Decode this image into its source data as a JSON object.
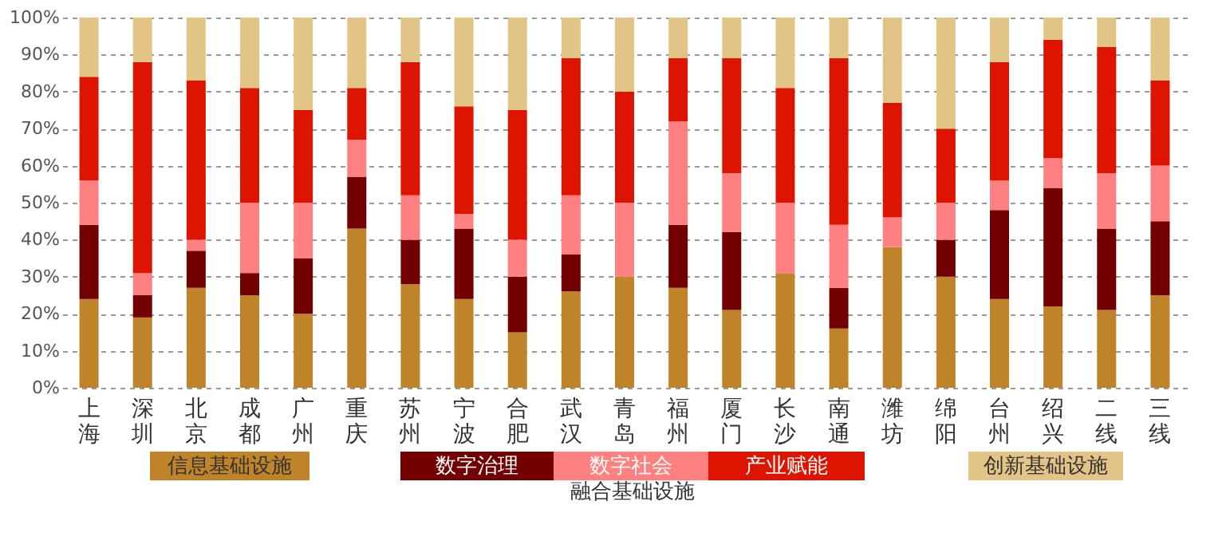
{
  "chart_data": {
    "type": "bar",
    "stacked": true,
    "categories": [
      "上海",
      "深圳",
      "北京",
      "成都",
      "广州",
      "重庆",
      "苏州",
      "宁波",
      "合肥",
      "武汉",
      "青岛",
      "福州",
      "厦门",
      "长沙",
      "南通",
      "潍坊",
      "绵阳",
      "台州",
      "绍兴",
      "二线",
      "三线"
    ],
    "series": [
      {
        "name": "信息基础设施",
        "color": "#bf842a",
        "values": [
          24,
          19,
          27,
          25,
          20,
          43,
          28,
          24,
          15,
          26,
          30,
          27,
          21,
          31,
          16,
          38,
          30,
          24,
          22,
          21,
          25
        ]
      },
      {
        "name": "数字治理",
        "color": "#730000",
        "values": [
          20,
          6,
          10,
          6,
          15,
          14,
          12,
          19,
          15,
          10,
          0,
          17,
          21,
          0,
          11,
          0,
          10,
          24,
          32,
          22,
          20
        ]
      },
      {
        "name": "数字社会",
        "color": "#ff8080",
        "values": [
          12,
          6,
          3,
          19,
          15,
          10,
          12,
          4,
          10,
          16,
          20,
          28,
          16,
          19,
          17,
          8,
          10,
          8,
          8,
          15,
          15
        ]
      },
      {
        "name": "产业赋能",
        "color": "#dd1500",
        "values": [
          28,
          57,
          43,
          31,
          25,
          14,
          36,
          29,
          35,
          37,
          30,
          17,
          31,
          31,
          45,
          31,
          20,
          32,
          32,
          34,
          23
        ]
      },
      {
        "name": "创新基础设施",
        "color": "#e3c487",
        "values": [
          16,
          12,
          17,
          19,
          25,
          19,
          12,
          24,
          25,
          11,
          20,
          11,
          11,
          19,
          11,
          23,
          30,
          12,
          6,
          8,
          17
        ]
      }
    ],
    "ylim": [
      0,
      100
    ],
    "yticks": [
      {
        "value": 0,
        "label": "0%"
      },
      {
        "value": 10,
        "label": "10%"
      },
      {
        "value": 20,
        "label": "20%"
      },
      {
        "value": 30,
        "label": "30%"
      },
      {
        "value": 40,
        "label": "40%"
      },
      {
        "value": 50,
        "label": "50%"
      },
      {
        "value": 60,
        "label": "60%"
      },
      {
        "value": 70,
        "label": "70%"
      },
      {
        "value": 80,
        "label": "80%"
      },
      {
        "value": 90,
        "label": "90%"
      },
      {
        "value": 100,
        "label": "100%"
      }
    ],
    "grid": "y",
    "legend": "bottom",
    "annotations": [
      "融合基础设施"
    ]
  }
}
